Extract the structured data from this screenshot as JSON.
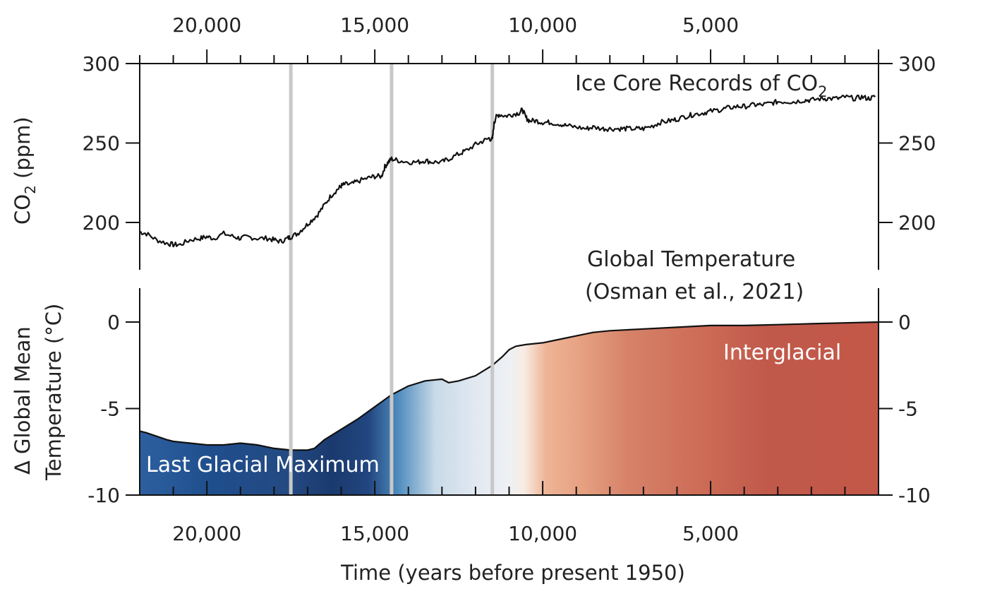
{
  "chart_data": [
    {
      "type": "line",
      "title": "Ice Core Records of CO",
      "title_subscript": "2",
      "ylabel_main": "CO",
      "ylabel_sub": "2",
      "ylabel_units": " (ppm)",
      "ylim": [
        175,
        300
      ],
      "xlim": [
        22000,
        0
      ],
      "yticks": [
        300,
        250,
        200
      ],
      "ytick_labels": [
        "300",
        "250",
        "200"
      ],
      "xticks_top": [
        20000,
        15000,
        10000,
        5000
      ],
      "xtick_labels_top": [
        "20,000",
        "15,000",
        "10,000",
        "5,000"
      ],
      "series": [
        {
          "x": [
            22000,
            21800,
            21500,
            21200,
            21000,
            20800,
            20500,
            20200,
            20000,
            19800,
            19500,
            19200,
            19000,
            18800,
            18500,
            18200,
            18000,
            17800,
            17600,
            17500,
            17300,
            17100,
            16900,
            16700,
            16500,
            16300,
            16100,
            16000,
            15900,
            15700,
            15500,
            15200,
            15000,
            14800,
            14700,
            14600,
            14500,
            14300,
            14000,
            13700,
            13500,
            13300,
            13000,
            12800,
            12500,
            12300,
            12000,
            11800,
            11600,
            11500,
            11450,
            11400,
            11300,
            11100,
            10900,
            10700,
            10600,
            10500,
            10400,
            10200,
            10000,
            9800,
            9500,
            9300,
            9000,
            8700,
            8500,
            8200,
            8000,
            7700,
            7500,
            7200,
            7000,
            6700,
            6500,
            6200,
            6000,
            5700,
            5500,
            5200,
            5000,
            4700,
            4500,
            4200,
            4000,
            3700,
            3500,
            3200,
            3000,
            2700,
            2500,
            2200,
            2000,
            1700,
            1500,
            1200,
            1000,
            700,
            500,
            300,
            100
          ],
          "values": [
            194,
            193,
            189,
            187,
            186,
            186,
            189,
            190,
            191,
            190,
            193,
            191,
            190,
            191,
            190,
            190,
            189,
            188,
            190,
            191,
            193,
            197,
            201,
            205,
            211,
            217,
            221,
            223,
            224,
            224,
            226,
            228,
            229,
            229,
            235,
            238,
            240,
            239,
            238,
            238,
            239,
            238,
            238,
            240,
            243,
            245,
            249,
            251,
            253,
            252,
            262,
            266,
            268,
            267,
            268,
            269,
            271,
            266,
            264,
            264,
            263,
            263,
            262,
            261,
            260,
            259,
            260,
            259,
            259,
            259,
            259,
            259,
            259,
            261,
            263,
            264,
            265,
            267,
            268,
            269,
            270,
            271,
            272,
            273,
            273,
            274,
            274,
            275,
            276,
            276,
            276,
            277,
            277,
            278,
            278,
            278,
            279,
            278,
            279,
            278,
            279
          ]
        }
      ]
    },
    {
      "type": "area",
      "title_line1": "Global Temperature",
      "title_line2": "(Osman et al.,  2021)",
      "ylabel_line1": "Δ Global Mean",
      "ylabel_line2": "Temperature (°C)",
      "xlabel": "Time (years before present 1950)",
      "ylim": [
        -10,
        2
      ],
      "xlim": [
        22000,
        0
      ],
      "yticks": [
        0,
        -5,
        -10
      ],
      "ytick_labels": [
        "0",
        "-5",
        "-10"
      ],
      "xticks_bottom": [
        20000,
        15000,
        10000,
        5000
      ],
      "xtick_labels_bottom": [
        "20,000",
        "15,000",
        "10,000",
        "5,000"
      ],
      "annotations": [
        "Last Glacial Maximum",
        "Interglacial"
      ],
      "colors": {
        "cold": "#1f4e8c",
        "mid": "#eef0f4",
        "warm": "#c0594a"
      },
      "series": [
        {
          "x": [
            22000,
            21800,
            21500,
            21200,
            21000,
            20500,
            20000,
            19500,
            19000,
            18500,
            18000,
            17500,
            17000,
            16800,
            16500,
            16000,
            15500,
            15000,
            14500,
            14000,
            13500,
            13000,
            12800,
            12500,
            12000,
            11500,
            11200,
            11000,
            10800,
            10500,
            10000,
            9500,
            9000,
            8500,
            8000,
            7000,
            6000,
            5000,
            4000,
            3000,
            2000,
            1000,
            0
          ],
          "values": [
            -6.3,
            -6.4,
            -6.6,
            -6.8,
            -6.9,
            -7.0,
            -7.1,
            -7.1,
            -7.0,
            -7.1,
            -7.3,
            -7.4,
            -7.4,
            -7.3,
            -6.8,
            -6.2,
            -5.6,
            -4.9,
            -4.2,
            -3.7,
            -3.4,
            -3.3,
            -3.5,
            -3.4,
            -3.1,
            -2.5,
            -2.0,
            -1.6,
            -1.4,
            -1.3,
            -1.2,
            -1.0,
            -0.8,
            -0.6,
            -0.5,
            -0.4,
            -0.3,
            -0.2,
            -0.2,
            -0.15,
            -0.1,
            -0.05,
            0.0
          ]
        }
      ]
    }
  ],
  "vertical_markers": [
    17500,
    14500,
    11500
  ]
}
